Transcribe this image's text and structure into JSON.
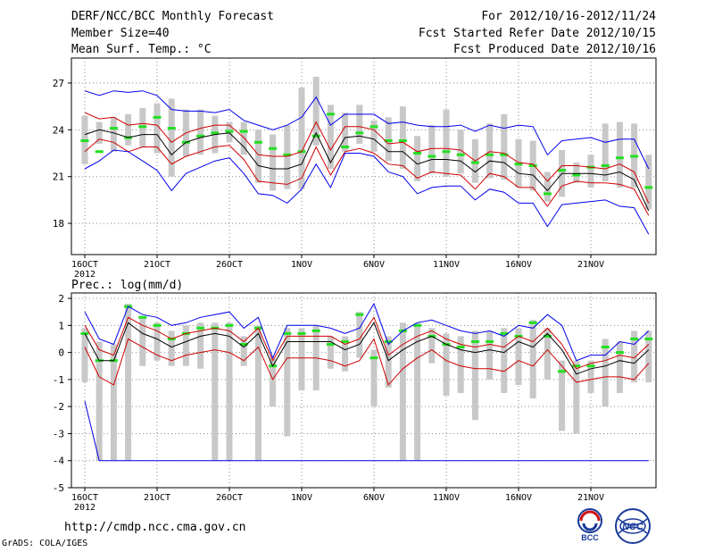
{
  "header": {
    "title": "DERF/NCC/BCC Monthly Forecast",
    "member_size": "Member Size=40",
    "variable": "Mean Surf. Temp.: °C",
    "period": "For 2012/10/16-2012/11/24",
    "start_date": "Fcst Started Refer Date 2012/10/15",
    "produced_date": "Fcst Produced Date 2012/10/16"
  },
  "footer": {
    "url": "http://cmdp.ncc.cma.gov.cn",
    "grads": "GrADS: COLA/IGES",
    "logo_bcc": "BCC",
    "logo_ncc": "NCC"
  },
  "colors": {
    "box": "#c8c8c8",
    "median": "#22e022",
    "mean": "#000000",
    "inner": "#d00000",
    "outer": "#0000ee",
    "grid": "#888888"
  },
  "chart_data": [
    {
      "type": "line",
      "title": "Mean Surf. Temp.: °C",
      "x": [
        1,
        2,
        3,
        4,
        5,
        6,
        7,
        8,
        9,
        10,
        11,
        12,
        13,
        14,
        15,
        16,
        17,
        18,
        19,
        20,
        21,
        22,
        23,
        24,
        25,
        26,
        27,
        28,
        29,
        30,
        31,
        32,
        33,
        34,
        35,
        36,
        37,
        38,
        39,
        40
      ],
      "x_tick_labels": [
        "16OCT",
        "21OCT",
        "26OCT",
        "1NOV",
        "6NOV",
        "11NOV",
        "16NOV",
        "21NOV"
      ],
      "x_tick_positions": [
        1,
        6,
        11,
        16,
        21,
        26,
        31,
        36
      ],
      "year_label": "2012",
      "ylim": [
        16,
        28.6
      ],
      "yticks": [
        18,
        21,
        24,
        27
      ],
      "series": [
        {
          "name": "mean",
          "values": [
            23.7,
            24.0,
            23.8,
            23.5,
            23.7,
            23.7,
            22.4,
            23.2,
            23.5,
            23.7,
            23.8,
            22.9,
            21.7,
            21.5,
            21.5,
            21.8,
            23.8,
            21.9,
            23.5,
            23.6,
            23.4,
            22.6,
            22.6,
            21.8,
            22.1,
            22.1,
            22.0,
            21.3,
            22.0,
            21.9,
            21.2,
            21.1,
            20.1,
            21.2,
            21.2,
            21.2,
            21.1,
            21.3,
            20.8,
            18.8
          ]
        },
        {
          "name": "upper_inner",
          "values": [
            25.1,
            24.7,
            24.8,
            24.3,
            24.4,
            24.3,
            23.2,
            23.8,
            24.1,
            24.3,
            24.3,
            23.5,
            22.4,
            22.3,
            22.3,
            22.6,
            24.5,
            22.7,
            24.2,
            24.2,
            24.0,
            23.1,
            23.2,
            22.6,
            22.8,
            22.8,
            22.7,
            22.0,
            22.6,
            22.5,
            21.9,
            21.8,
            20.7,
            21.7,
            21.7,
            21.6,
            21.5,
            21.8,
            21.3,
            19.3
          ]
        },
        {
          "name": "lower_inner",
          "values": [
            22.6,
            23.4,
            23.2,
            22.6,
            22.9,
            22.9,
            21.8,
            22.3,
            22.6,
            22.9,
            23.0,
            22.1,
            20.7,
            20.6,
            20.5,
            20.9,
            22.9,
            21.1,
            22.6,
            22.8,
            22.5,
            21.8,
            21.7,
            20.9,
            21.3,
            21.2,
            21.1,
            20.2,
            21.2,
            21.0,
            20.3,
            20.3,
            19.1,
            20.4,
            20.7,
            20.6,
            20.6,
            20.5,
            20.2,
            18.5
          ]
        },
        {
          "name": "upper_outer",
          "values": [
            26.5,
            26.2,
            26.5,
            26.4,
            26.5,
            26.2,
            25.3,
            25.2,
            25.2,
            25.1,
            25.3,
            24.6,
            24.3,
            24.0,
            24.3,
            24.8,
            26.1,
            24.3,
            25.0,
            25.0,
            25.0,
            24.4,
            24.5,
            24.3,
            24.2,
            24.2,
            24.3,
            23.9,
            24.3,
            24.1,
            24.3,
            24.2,
            22.4,
            23.3,
            23.4,
            23.5,
            23.2,
            23.4,
            23.4,
            21.5
          ]
        },
        {
          "name": "lower_outer",
          "values": [
            21.5,
            22.0,
            22.7,
            22.6,
            22.0,
            21.4,
            20.1,
            21.2,
            21.6,
            22.0,
            22.2,
            21.2,
            19.9,
            19.8,
            19.3,
            20.2,
            21.8,
            20.3,
            22.5,
            22.5,
            22.3,
            21.3,
            21.0,
            19.9,
            20.3,
            20.4,
            20.4,
            19.5,
            20.2,
            20.0,
            19.3,
            19.3,
            17.8,
            19.2,
            19.3,
            19.4,
            19.5,
            19.1,
            19.0,
            17.3
          ]
        }
      ],
      "boxes": {
        "median": [
          23.3,
          22.6,
          24.1,
          23.5,
          24.2,
          24.8,
          24.1,
          23.2,
          23.6,
          23.8,
          23.9,
          23.9,
          23.2,
          22.8,
          22.4,
          22.6,
          23.6,
          25.0,
          22.9,
          23.8,
          24.2,
          23.3,
          23.3,
          22.5,
          22.3,
          22.6,
          22.4,
          21.9,
          22.4,
          22.4,
          21.8,
          21.7,
          19.9,
          21.4,
          21.1,
          21.6,
          21.7,
          22.2,
          22.3,
          20.3
        ],
        "top": [
          24.9,
          24.5,
          24.8,
          25.0,
          25.4,
          25.7,
          26.0,
          25.3,
          25.3,
          24.9,
          24.5,
          24.5,
          24.0,
          23.7,
          24.3,
          26.7,
          27.4,
          25.6,
          25.1,
          25.6,
          24.6,
          24.8,
          25.5,
          23.6,
          24.3,
          25.3,
          24.0,
          23.4,
          24.4,
          25.0,
          23.4,
          23.3,
          21.3,
          22.7,
          21.9,
          22.4,
          24.4,
          24.5,
          24.4,
          22.4
        ],
        "bottom": [
          21.8,
          23.1,
          22.6,
          23.0,
          22.9,
          22.5,
          21.0,
          22.3,
          22.4,
          22.5,
          23.2,
          22.4,
          20.6,
          20.1,
          20.2,
          20.2,
          23.0,
          21.5,
          22.6,
          23.1,
          22.6,
          22.0,
          21.5,
          20.7,
          21.2,
          21.0,
          21.2,
          20.6,
          20.9,
          20.8,
          20.3,
          20.1,
          19.4,
          19.7,
          20.6,
          20.3,
          20.7,
          20.3,
          20.3,
          18.9
        ]
      }
    },
    {
      "type": "line",
      "title": "Prec.: log(mm/d)",
      "x": [
        1,
        2,
        3,
        4,
        5,
        6,
        7,
        8,
        9,
        10,
        11,
        12,
        13,
        14,
        15,
        16,
        17,
        18,
        19,
        20,
        21,
        22,
        23,
        24,
        25,
        26,
        27,
        28,
        29,
        30,
        31,
        32,
        33,
        34,
        35,
        36,
        37,
        38,
        39,
        40
      ],
      "x_tick_labels": [
        "16OCT",
        "21OCT",
        "26OCT",
        "1NOV",
        "6NOV",
        "11NOV",
        "16NOV",
        "21NOV"
      ],
      "x_tick_positions": [
        1,
        6,
        11,
        16,
        21,
        26,
        31,
        36
      ],
      "year_label": "2012",
      "ylim": [
        -5,
        2.2
      ],
      "yticks": [
        -5,
        -4,
        -3,
        -2,
        -1,
        0,
        1,
        2
      ],
      "series": [
        {
          "name": "mean",
          "values": [
            0.7,
            -0.3,
            -0.3,
            1.1,
            0.7,
            0.5,
            0.2,
            0.4,
            0.6,
            0.7,
            0.6,
            0.2,
            0.7,
            -0.5,
            0.4,
            0.4,
            0.4,
            0.4,
            0.1,
            0.3,
            1.1,
            -0.3,
            0.1,
            0.4,
            0.6,
            0.3,
            0.1,
            0.0,
            0.1,
            0.0,
            0.4,
            0.2,
            0.7,
            0.1,
            -0.8,
            -0.6,
            -0.5,
            -0.3,
            -0.4,
            0.1
          ]
        },
        {
          "name": "upper_inner",
          "values": [
            1.0,
            0.1,
            -0.1,
            1.3,
            1.0,
            0.8,
            0.5,
            0.7,
            0.8,
            0.9,
            0.8,
            0.4,
            0.9,
            -0.3,
            0.6,
            0.6,
            0.6,
            0.6,
            0.3,
            0.5,
            1.3,
            -0.1,
            0.3,
            0.6,
            0.8,
            0.5,
            0.3,
            0.2,
            0.3,
            0.2,
            0.6,
            0.4,
            0.9,
            0.3,
            -0.6,
            -0.4,
            -0.3,
            -0.1,
            -0.2,
            0.3
          ]
        },
        {
          "name": "lower_inner",
          "values": [
            0.2,
            -0.9,
            -1.2,
            0.5,
            0.2,
            -0.1,
            -0.3,
            -0.1,
            0.0,
            0.1,
            0.0,
            -0.3,
            0.2,
            -1.0,
            -0.2,
            -0.2,
            -0.2,
            -0.3,
            -0.5,
            -0.3,
            0.5,
            -1.2,
            -0.6,
            -0.2,
            0.1,
            -0.3,
            -0.5,
            -0.6,
            -0.6,
            -0.7,
            -0.3,
            -0.5,
            0.1,
            -0.5,
            -1.1,
            -1.0,
            -0.9,
            -0.9,
            -1.0,
            -0.4
          ]
        },
        {
          "name": "upper_outer",
          "values": [
            1.5,
            0.5,
            0.3,
            1.7,
            1.4,
            1.3,
            1.0,
            1.1,
            1.3,
            1.4,
            1.5,
            0.9,
            1.3,
            -0.2,
            1.0,
            1.0,
            1.0,
            0.9,
            0.7,
            0.9,
            1.8,
            0.3,
            0.8,
            1.1,
            1.2,
            1.0,
            0.8,
            0.7,
            0.8,
            0.6,
            1.0,
            0.9,
            1.4,
            1.0,
            -0.3,
            -0.1,
            -0.1,
            0.4,
            0.3,
            0.8
          ]
        },
        {
          "name": "lower_outer",
          "values": [
            -1.8,
            -4.0,
            -4.0,
            -4.0,
            -4.0,
            -4.0,
            -4.0,
            -4.0,
            -4.0,
            -4.0,
            -4.0,
            -4.0,
            -4.0,
            -4.0,
            -4.0,
            -4.0,
            -4.0,
            -4.0,
            -4.0,
            -4.0,
            -4.0,
            -4.0,
            -4.0,
            -4.0,
            -4.0,
            -4.0,
            -4.0,
            -4.0,
            -4.0,
            -4.0,
            -4.0,
            -4.0,
            -4.0,
            -4.0,
            -4.0,
            -4.0,
            -4.0,
            -4.0,
            -4.0,
            -4.0
          ]
        }
      ],
      "boxes": {
        "median": [
          0.7,
          -0.3,
          -0.3,
          1.7,
          1.3,
          1.0,
          0.5,
          0.7,
          0.9,
          0.9,
          1.0,
          0.3,
          0.9,
          -0.5,
          0.7,
          0.7,
          0.8,
          0.3,
          0.4,
          1.4,
          -0.2,
          0.4,
          0.8,
          1.0,
          0.6,
          0.3,
          0.2,
          0.4,
          0.4,
          0.7,
          0.6,
          1.1,
          0.6,
          -0.7,
          -0.5,
          -0.5,
          0.2,
          0.0,
          0.5,
          0.5
        ],
        "top": [
          0.9,
          0.4,
          0.3,
          1.8,
          1.3,
          1.1,
          0.8,
          1.0,
          1.1,
          1.1,
          1.1,
          0.6,
          1.0,
          -0.2,
          0.9,
          0.9,
          1.0,
          0.6,
          0.6,
          1.5,
          0.1,
          0.6,
          1.1,
          1.1,
          0.9,
          0.7,
          0.6,
          0.8,
          0.8,
          0.9,
          0.9,
          1.2,
          0.9,
          -0.3,
          -0.3,
          -0.3,
          0.5,
          0.4,
          0.8,
          0.8
        ],
        "bottom": [
          -1.1,
          -4.0,
          -4.0,
          -4.0,
          -0.5,
          -0.3,
          -0.5,
          -0.5,
          -0.6,
          -4.0,
          -4.0,
          -0.5,
          -4.0,
          -2.0,
          -3.1,
          -1.4,
          -1.4,
          -0.6,
          -0.7,
          -0.2,
          -2.0,
          -1.3,
          -4.0,
          -4.0,
          -0.4,
          -1.6,
          -1.5,
          -2.5,
          -1.0,
          -1.5,
          -1.2,
          -1.7,
          -1.0,
          -2.9,
          -3.0,
          -1.5,
          -2.0,
          -1.5,
          -1.1,
          -1.1
        ]
      }
    }
  ]
}
